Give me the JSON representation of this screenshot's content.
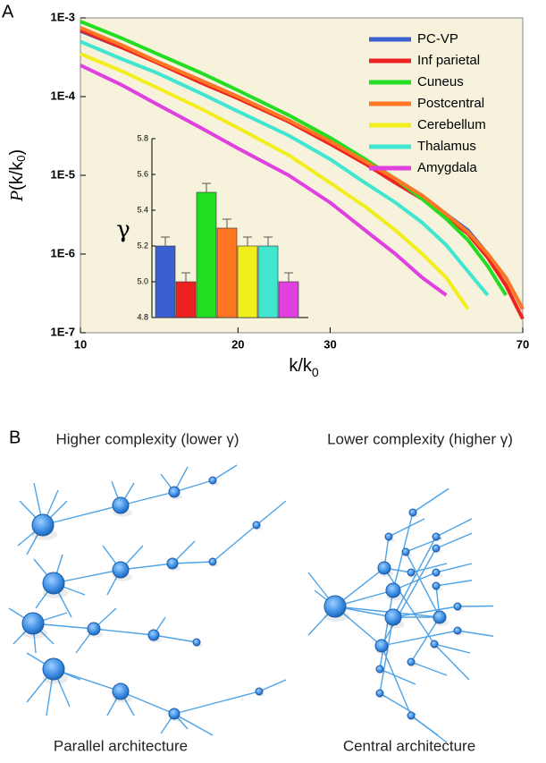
{
  "panel_a_label": "A",
  "chart_data": [
    {
      "type": "line",
      "ylabel_parts": [
        "P",
        "(k/k",
        "0",
        ")"
      ],
      "xlabel_parts": [
        "k/k",
        "0"
      ],
      "xscale": "log",
      "yscale": "log",
      "xlim": [
        10,
        70
      ],
      "ylim": [
        1e-07,
        0.001
      ],
      "xticks": [
        10,
        20,
        30,
        70
      ],
      "yticks": [
        {
          "value": 0.001,
          "label": "1E-3"
        },
        {
          "value": 0.0001,
          "label": "1E-4"
        },
        {
          "value": 1e-05,
          "label": "1E-5"
        },
        {
          "value": 1e-06,
          "label": "1E-6"
        },
        {
          "value": 1e-07,
          "label": "1E-7"
        }
      ],
      "legend": "upper right",
      "x": [
        10,
        12,
        14,
        17,
        20,
        25,
        30,
        35,
        40,
        45,
        50,
        55,
        60,
        65,
        70
      ],
      "series": [
        {
          "name": "PC-VP",
          "color": "#3a5fd0",
          "values": [
            0.00068,
            0.00042,
            0.00028,
            0.00016,
            0.0001,
            5e-05,
            2.6e-05,
            1.5e-05,
            9e-06,
            5.5e-06,
            3.2e-06,
            2e-06,
            1e-06,
            5e-07,
            2e-07
          ]
        },
        {
          "name": "Inf parietal",
          "color": "#ee2222",
          "values": [
            0.0007,
            0.00042,
            0.00027,
            0.00015,
            9.5e-05,
            4.8e-05,
            2.5e-05,
            1.4e-05,
            8e-06,
            5e-06,
            3e-06,
            1.8e-06,
            9e-07,
            4e-07,
            1.5e-07
          ]
        },
        {
          "name": "Cuneus",
          "color": "#22dd22",
          "values": [
            0.0009,
            0.00055,
            0.00035,
            0.0002,
            0.00012,
            5.8e-05,
            3e-05,
            1.6e-05,
            9e-06,
            5e-06,
            2.8e-06,
            1.5e-06,
            7e-07,
            3e-07,
            null
          ]
        },
        {
          "name": "Postcentral",
          "color": "#ff7722",
          "values": [
            0.00075,
            0.00045,
            0.00028,
            0.00016,
            0.0001,
            5e-05,
            2.7e-05,
            1.5e-05,
            9e-06,
            5.5e-06,
            3.2e-06,
            1.9e-06,
            1e-06,
            5e-07,
            2e-07
          ]
        },
        {
          "name": "Cerebellum",
          "color": "#f2ee1e",
          "values": [
            0.00035,
            0.00021,
            0.00013,
            7e-05,
            4e-05,
            1.8e-05,
            8e-06,
            4e-06,
            2e-06,
            1e-06,
            5e-07,
            2e-07,
            null,
            null,
            null
          ]
        },
        {
          "name": "Thalamus",
          "color": "#40e6d0",
          "values": [
            0.0005,
            0.0003,
            0.0002,
            0.00011,
            6.5e-05,
            3.2e-05,
            1.6e-05,
            8e-06,
            4.5e-06,
            2.5e-06,
            1.3e-06,
            6e-07,
            3e-07,
            null,
            null
          ]
        },
        {
          "name": "Amygdala",
          "color": "#e040e0",
          "values": [
            0.00025,
            0.00014,
            8e-05,
            4e-05,
            2.2e-05,
            1e-05,
            4.5e-06,
            2e-06,
            1e-06,
            5e-07,
            3e-07,
            null,
            null,
            null,
            null
          ]
        }
      ]
    },
    {
      "type": "bar",
      "ylabel": "γ",
      "ylim": [
        4.8,
        5.8
      ],
      "yticks": [
        4.8,
        {
          "value": 5,
          "label": "5.0"
        },
        5.2,
        5.4,
        5.6,
        5.8
      ],
      "categories": [
        null,
        null,
        null,
        null,
        null,
        null,
        null
      ],
      "values": [
        5.2,
        5.0,
        5.5,
        5.3,
        5.2,
        5.2,
        5.0
      ],
      "errors": [
        0.05,
        0.05,
        0.05,
        0.05,
        0.05,
        0.05,
        0.05
      ],
      "colors": [
        "#3a5fd0",
        "#ee2222",
        "#22dd22",
        "#ff7722",
        "#f2ee1e",
        "#40e6d0",
        "#e040e0"
      ]
    }
  ],
  "panel_b": {
    "label": "B",
    "left": {
      "title": "Higher complexity (lower γ)",
      "caption": "Parallel architecture"
    },
    "right": {
      "title": "Lower complexity (higher γ)",
      "caption": "Central architecture"
    }
  }
}
